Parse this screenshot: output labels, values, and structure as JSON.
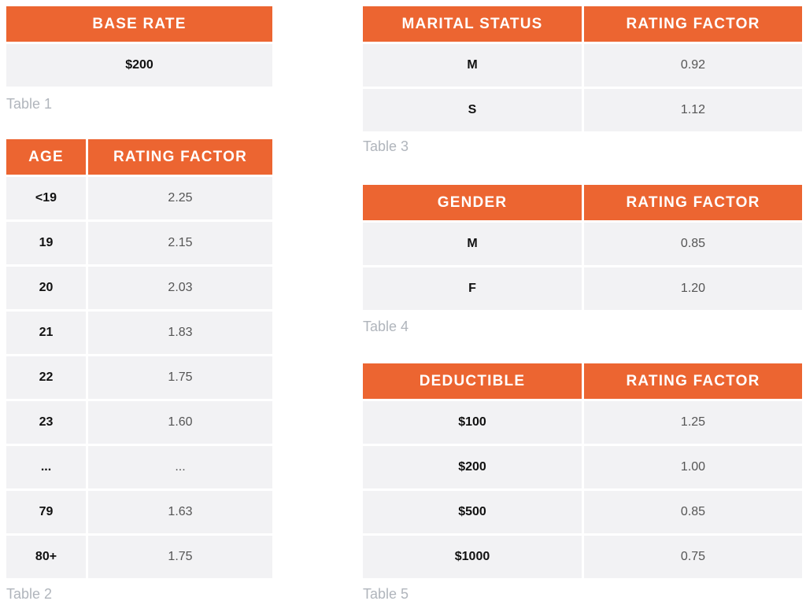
{
  "table1": {
    "header": "BASE RATE",
    "value": "$200",
    "caption": "Table 1"
  },
  "table2": {
    "headers": [
      "AGE",
      "RATING FACTOR"
    ],
    "rows": [
      {
        "key": "<19",
        "value": "2.25"
      },
      {
        "key": "19",
        "value": "2.15"
      },
      {
        "key": "20",
        "value": "2.03"
      },
      {
        "key": "21",
        "value": "1.83"
      },
      {
        "key": "22",
        "value": "1.75"
      },
      {
        "key": "23",
        "value": "1.60"
      },
      {
        "key": "...",
        "value": "..."
      },
      {
        "key": "79",
        "value": "1.63"
      },
      {
        "key": "80+",
        "value": "1.75"
      }
    ],
    "caption": "Table 2"
  },
  "table3": {
    "headers": [
      "MARITAL STATUS",
      "RATING FACTOR"
    ],
    "rows": [
      {
        "key": "M",
        "value": "0.92"
      },
      {
        "key": "S",
        "value": "1.12"
      }
    ],
    "caption": "Table 3"
  },
  "table4": {
    "headers": [
      "GENDER",
      "RATING FACTOR"
    ],
    "rows": [
      {
        "key": "M",
        "value": "0.85"
      },
      {
        "key": "F",
        "value": "1.20"
      }
    ],
    "caption": "Table 4"
  },
  "table5": {
    "headers": [
      "DEDUCTIBLE",
      "RATING FACTOR"
    ],
    "rows": [
      {
        "key": "$100",
        "value": "1.25"
      },
      {
        "key": "$200",
        "value": "1.00"
      },
      {
        "key": "$500",
        "value": "0.85"
      },
      {
        "key": "$1000",
        "value": "0.75"
      }
    ],
    "caption": "Table 5"
  },
  "colors": {
    "header_bg": "#ec6531",
    "row_bg": "#f2f2f4",
    "caption": "#b0b5bc"
  }
}
